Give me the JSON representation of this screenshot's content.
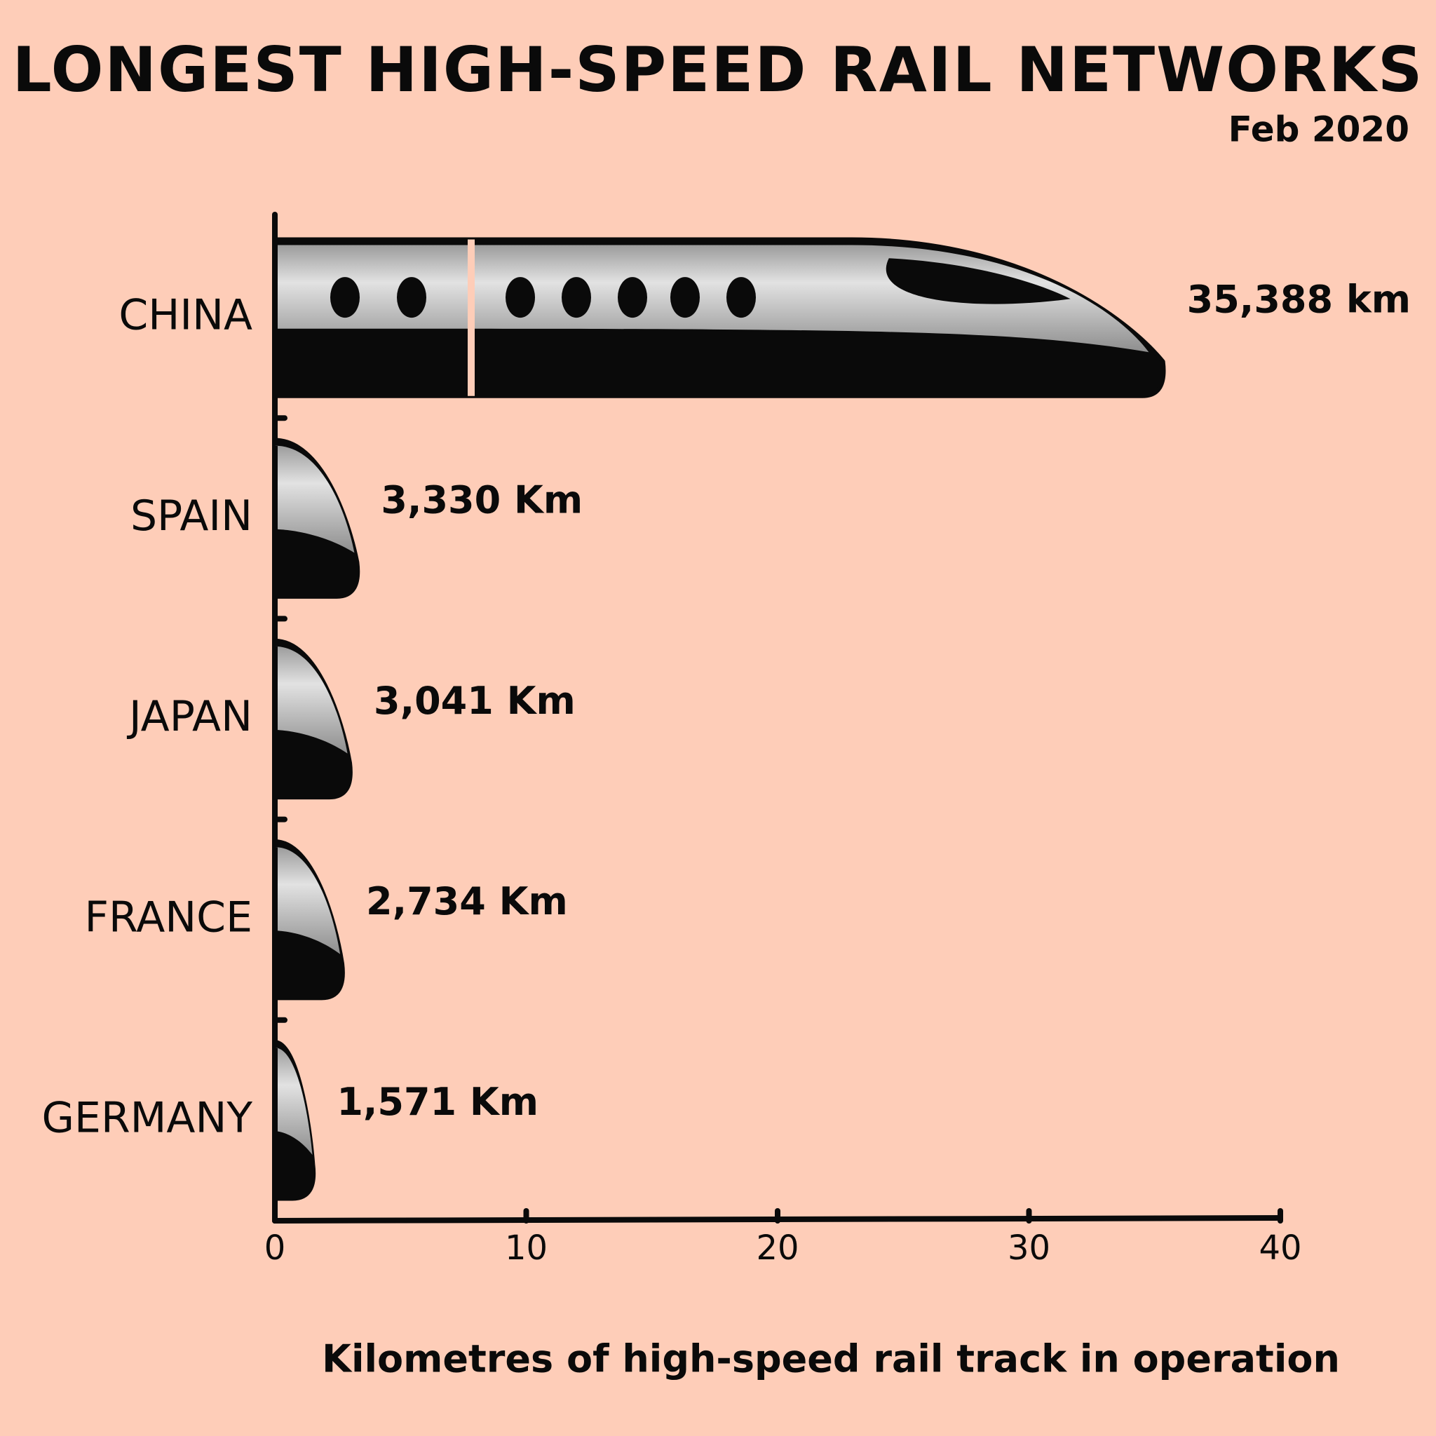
{
  "chart_data": {
    "type": "bar",
    "orientation": "horizontal",
    "title": "LONGEST HIGH-SPEED RAIL NETWORKS",
    "subtitle": "Feb 2020",
    "x_label": "Kilometres of high-speed rail track in operation",
    "categories": [
      "CHINA",
      "SPAIN",
      "JAPAN",
      "FRANCE",
      "GERMANY"
    ],
    "values": [
      35.388,
      3.33,
      3.041,
      2.734,
      1.571
    ],
    "value_labels": [
      "35,388 km",
      "3,330 Km",
      "3,041 Km",
      "2,734 Km",
      "1,571 Km"
    ],
    "color": "#0a0a0a",
    "xlim": [
      0,
      40
    ],
    "xticks": [
      0,
      10,
      20,
      30,
      40
    ]
  }
}
